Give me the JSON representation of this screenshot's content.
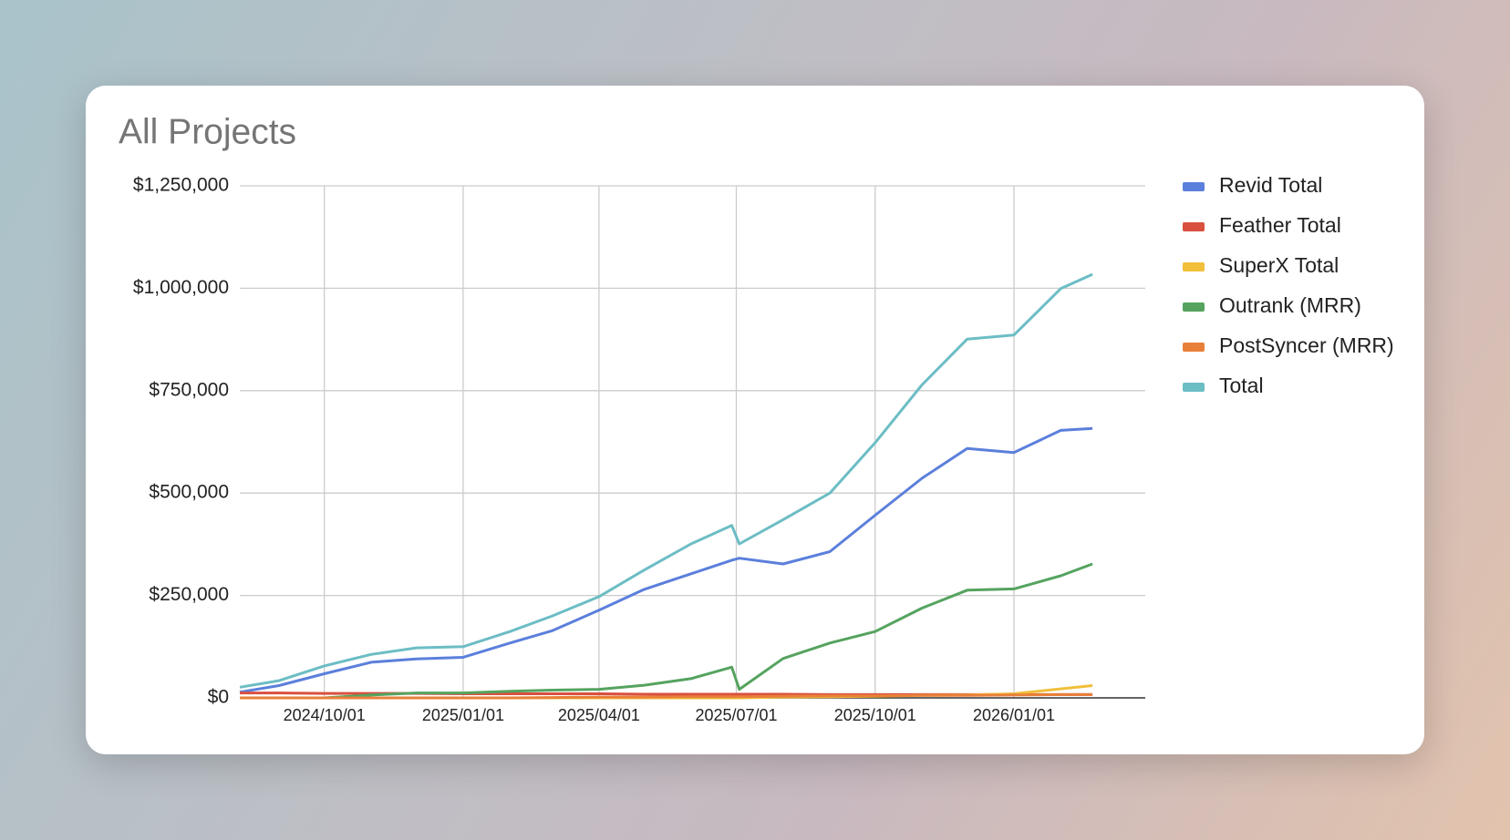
{
  "chart_data": {
    "type": "line",
    "title": "All Projects",
    "x": [
      "2024/08/06",
      "2024/09/01",
      "2024/10/01",
      "2024/11/01",
      "2024/12/01",
      "2025/01/01",
      "2025/02/01",
      "2025/03/01",
      "2025/04/01",
      "2025/05/01",
      "2025/06/01",
      "2025/06/28",
      "2025/07/03",
      "2025/08/01",
      "2025/09/01",
      "2025/10/01",
      "2025/11/01",
      "2025/12/01",
      "2026/01/01",
      "2026/02/01",
      "2026/02/22"
    ],
    "series": [
      {
        "name": "Revid Total",
        "color": "#5b7fdc",
        "values": [
          14000,
          30000,
          59000,
          87000,
          95000,
          99000,
          134000,
          164000,
          214000,
          265000,
          303000,
          336000,
          341000,
          327000,
          357000,
          446000,
          536000,
          609000,
          599000,
          653000,
          658000
        ]
      },
      {
        "name": "Feather Total",
        "color": "#d9503f",
        "values": [
          12000,
          12000,
          11000,
          11000,
          11000,
          10000,
          10000,
          10000,
          10000,
          9000,
          9000,
          9000,
          9000,
          9000,
          8000,
          8000,
          8000,
          8000,
          8000,
          8000,
          8000
        ]
      },
      {
        "name": "SuperX Total",
        "color": "#f1bf3a",
        "values": [
          0,
          0,
          0,
          0,
          0,
          0,
          0,
          0,
          0,
          0,
          0,
          0,
          0,
          2000,
          3000,
          4000,
          6000,
          7000,
          10000,
          22000,
          30000
        ]
      },
      {
        "name": "Outrank (MRR)",
        "color": "#55a35f",
        "values": [
          0,
          0,
          0,
          7000,
          12000,
          12000,
          16000,
          19000,
          21000,
          31000,
          47000,
          75000,
          21000,
          96000,
          134000,
          162000,
          219000,
          263000,
          266000,
          298000,
          327000
        ]
      },
      {
        "name": "PostSyncer (MRR)",
        "color": "#e9803a",
        "values": [
          0,
          0,
          0,
          0,
          0,
          0,
          0,
          1000,
          2000,
          2000,
          3000,
          3000,
          3000,
          4000,
          5000,
          5000,
          6000,
          6000,
          7000,
          8000,
          8000
        ]
      },
      {
        "name": "Total",
        "color": "#6cbdc4",
        "values": [
          26000,
          42000,
          78000,
          106000,
          122000,
          125000,
          162000,
          200000,
          247000,
          312000,
          376000,
          421000,
          376000,
          435000,
          500000,
          623000,
          764000,
          876000,
          886000,
          999000,
          1034000
        ]
      }
    ],
    "xlim": [
      "2024/08/06",
      "2026/03/29"
    ],
    "xticks": [
      "2024/10/01",
      "2025/01/01",
      "2025/04/01",
      "2025/07/01",
      "2025/10/01",
      "2026/01/01"
    ],
    "ylim": [
      0,
      1250000
    ],
    "yticks": [
      {
        "value": 0,
        "label": "$0"
      },
      {
        "value": 250000,
        "label": "$250,000"
      },
      {
        "value": 500000,
        "label": "$500,000"
      },
      {
        "value": 750000,
        "label": "$750,000"
      },
      {
        "value": 1000000,
        "label": "$1,000,000"
      },
      {
        "value": 1250000,
        "label": "$1,250,000"
      }
    ],
    "grid": true,
    "legend": "right"
  }
}
